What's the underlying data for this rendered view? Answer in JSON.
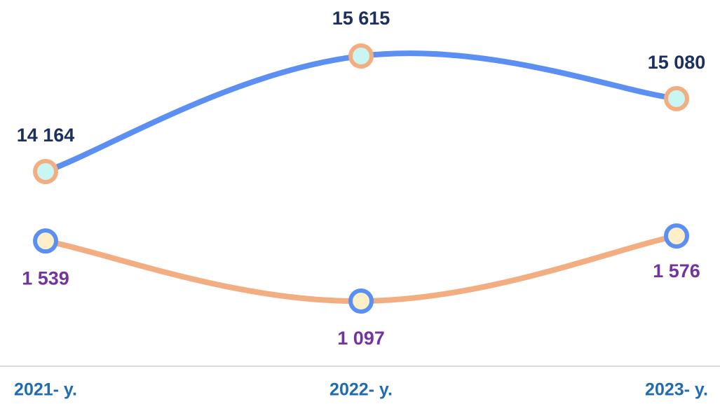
{
  "chart_data": {
    "type": "line",
    "categories": [
      "2021- y.",
      "2022- y.",
      "2023- y."
    ],
    "series": [
      {
        "name": null,
        "color": "#5b8ff2",
        "marker_fill": "#c9f6f2",
        "marker_stroke": "#f2ad80",
        "label_color": "#1c2f5e",
        "values": [
          14164,
          15615,
          15080
        ],
        "value_labels": [
          "14 164",
          "15 615",
          "15 080"
        ]
      },
      {
        "name": null,
        "color": "#f2ad80",
        "marker_fill": "#fdefc8",
        "marker_stroke": "#5b8ff2",
        "label_color": "#7334a0",
        "values": [
          1539,
          1097,
          1576
        ],
        "value_labels": [
          "1 539",
          "1 097",
          "1 576"
        ]
      }
    ]
  }
}
